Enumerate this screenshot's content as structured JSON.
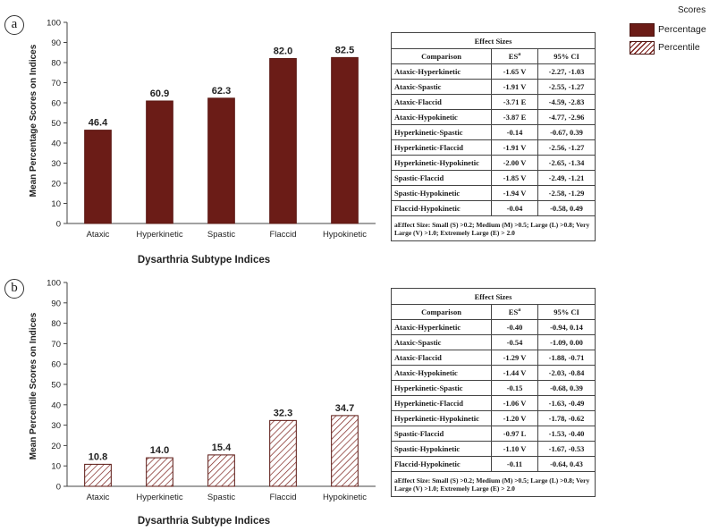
{
  "legend": {
    "title": "Scores",
    "items": [
      {
        "label": "Percentage",
        "style": "solid"
      },
      {
        "label": "Percentile",
        "style": "hatched"
      }
    ]
  },
  "colors": {
    "bar_fill": "#6b1c17",
    "hatch": "#7a1f1a"
  },
  "chart_data": [
    {
      "panel": "a",
      "type": "bar",
      "categories": [
        "Ataxic",
        "Hyperkinetic",
        "Spastic",
        "Flaccid",
        "Hypokinetic"
      ],
      "values": [
        46.4,
        60.9,
        62.3,
        82.0,
        82.5
      ],
      "value_labels": [
        "46.4",
        "60.9",
        "62.3",
        "82.0",
        "82.5"
      ],
      "style": "solid",
      "xlabel": "Dysarthria Subtype Indices",
      "ylabel": "Mean Percentage Scores on Indices",
      "ylim": [
        0,
        100
      ],
      "yticks": [
        "0",
        "10",
        "20",
        "30",
        "40",
        "50",
        "60",
        "70",
        "80",
        "90",
        "100"
      ],
      "grid": false
    },
    {
      "panel": "b",
      "type": "bar",
      "categories": [
        "Ataxic",
        "Hyperkinetic",
        "Spastic",
        "Flaccid",
        "Hypokinetic"
      ],
      "values": [
        10.8,
        14.0,
        15.4,
        32.3,
        34.7
      ],
      "value_labels": [
        "10.8",
        "14.0",
        "15.4",
        "32.3",
        "34.7"
      ],
      "style": "hatched",
      "xlabel": "Dysarthria Subtype Indices",
      "ylabel": "Mean Percentile Scores on Indices",
      "ylim": [
        0,
        100
      ],
      "yticks": [
        "0",
        "10",
        "20",
        "30",
        "40",
        "50",
        "60",
        "70",
        "80",
        "90",
        "100"
      ],
      "grid": false
    }
  ],
  "tables": [
    {
      "title": "Effect Sizes",
      "headers": [
        "Comparison",
        "ES",
        "95% CI"
      ],
      "rows": [
        [
          "Ataxic-Hyperkinetic",
          "-1.65 V",
          "-2.27, -1.03"
        ],
        [
          "Ataxic-Spastic",
          "-1.91 V",
          "-2.55, -1.27"
        ],
        [
          "Ataxic-Flaccid",
          "-3.71 E",
          "-4.59, -2.83"
        ],
        [
          "Ataxic-Hypokinetic",
          "-3.87 E",
          "-4.77, -2.96"
        ],
        [
          "Hyperkinetic-Spastic",
          "-0.14",
          "-0.67, 0.39"
        ],
        [
          "Hyperkinetic-Flaccid",
          "-1.91 V",
          "-2.56, -1.27"
        ],
        [
          "Hyperkinetic-Hypokinetic",
          "-2.00 V",
          "-2.65, -1.34"
        ],
        [
          "Spastic-Flaccid",
          "-1.85 V",
          "-2.49, -1.21"
        ],
        [
          "Spastic-Hypokinetic",
          "-1.94 V",
          "-2.58, -1.29"
        ],
        [
          "Flaccid-Hypokinetic",
          "-0.04",
          "-0.58, 0.49"
        ]
      ],
      "note": "aEffect Size: Small (S) >0.2; Medium (M) >0.5; Large (L) >0.8; Very Large (V) >1.0; Extremely Large (E) > 2.0"
    },
    {
      "title": "Effect Sizes",
      "headers": [
        "Comparison",
        "ES",
        "95% CI"
      ],
      "rows": [
        [
          "Ataxic-Hyperkinetic",
          "-0.40",
          "-0.94, 0.14"
        ],
        [
          "Ataxic-Spastic",
          "-0.54",
          "-1.09, 0.00"
        ],
        [
          "Ataxic-Flaccid",
          "-1.29 V",
          "-1.88, -0.71"
        ],
        [
          "Ataxic-Hypokinetic",
          "-1.44 V",
          "-2.03, -0.84"
        ],
        [
          "Hyperkinetic-Spastic",
          "-0.15",
          "-0.68, 0.39"
        ],
        [
          "Hyperkinetic-Flaccid",
          "-1.06 V",
          "-1.63, -0.49"
        ],
        [
          "Hyperkinetic-Hypokinetic",
          "-1.20 V",
          "-1.78, -0.62"
        ],
        [
          "Spastic-Flaccid",
          "-0.97 L",
          "-1.53, -0.40"
        ],
        [
          "Spastic-Hypokinetic",
          "-1.10 V",
          "-1.67, -0.53"
        ],
        [
          "Flaccid-Hypokinetic",
          "-0.11",
          "-0.64, 0.43"
        ]
      ],
      "note": "aEffect Size: Small (S) >0.2; Medium (M) >0.5; Large (L) >0.8; Very Large (V) >1.0; Extremely Large (E) > 2.0"
    }
  ],
  "panel_labels": [
    "a",
    "b"
  ]
}
